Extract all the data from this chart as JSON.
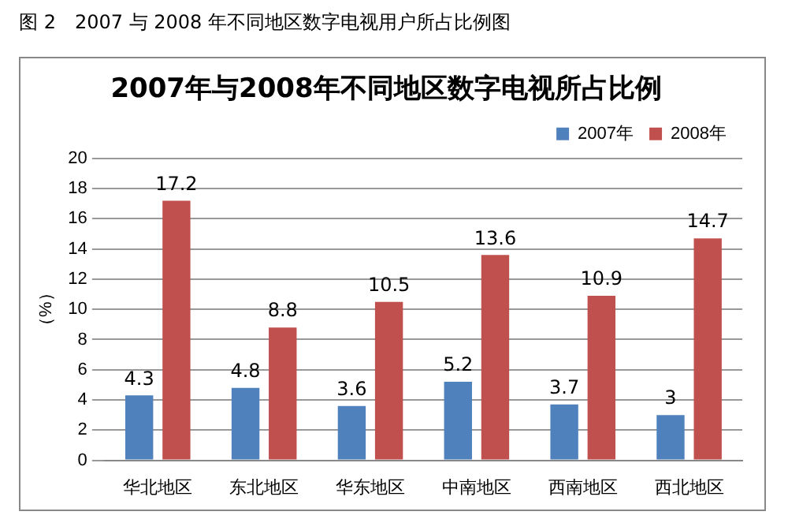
{
  "chart_data": {
    "type": "bar",
    "title": "2007年与2008年不同地区数字电视所占比例",
    "ylabel": "（%）",
    "annotations": [
      "图 2　2007 与 2008 年不同地区数字电视用户所占比例图"
    ],
    "categories": [
      "华北地区",
      "东北地区",
      "华东地区",
      "中南地区",
      "西南地区",
      "西北地区"
    ],
    "series": [
      {
        "name": "2007年",
        "color": "#4f81bd",
        "values": [
          4.3,
          4.8,
          3.6,
          5.2,
          3.7,
          3
        ]
      },
      {
        "name": "2008年",
        "color": "#c0504d",
        "values": [
          17.2,
          8.8,
          10.5,
          13.6,
          10.9,
          14.7
        ]
      }
    ],
    "ylim": [
      0,
      20
    ],
    "yticks": [
      0,
      2,
      4,
      6,
      8,
      10,
      12,
      14,
      16,
      18,
      20
    ],
    "grid": "y",
    "legend": "top right",
    "data_labels": true
  }
}
